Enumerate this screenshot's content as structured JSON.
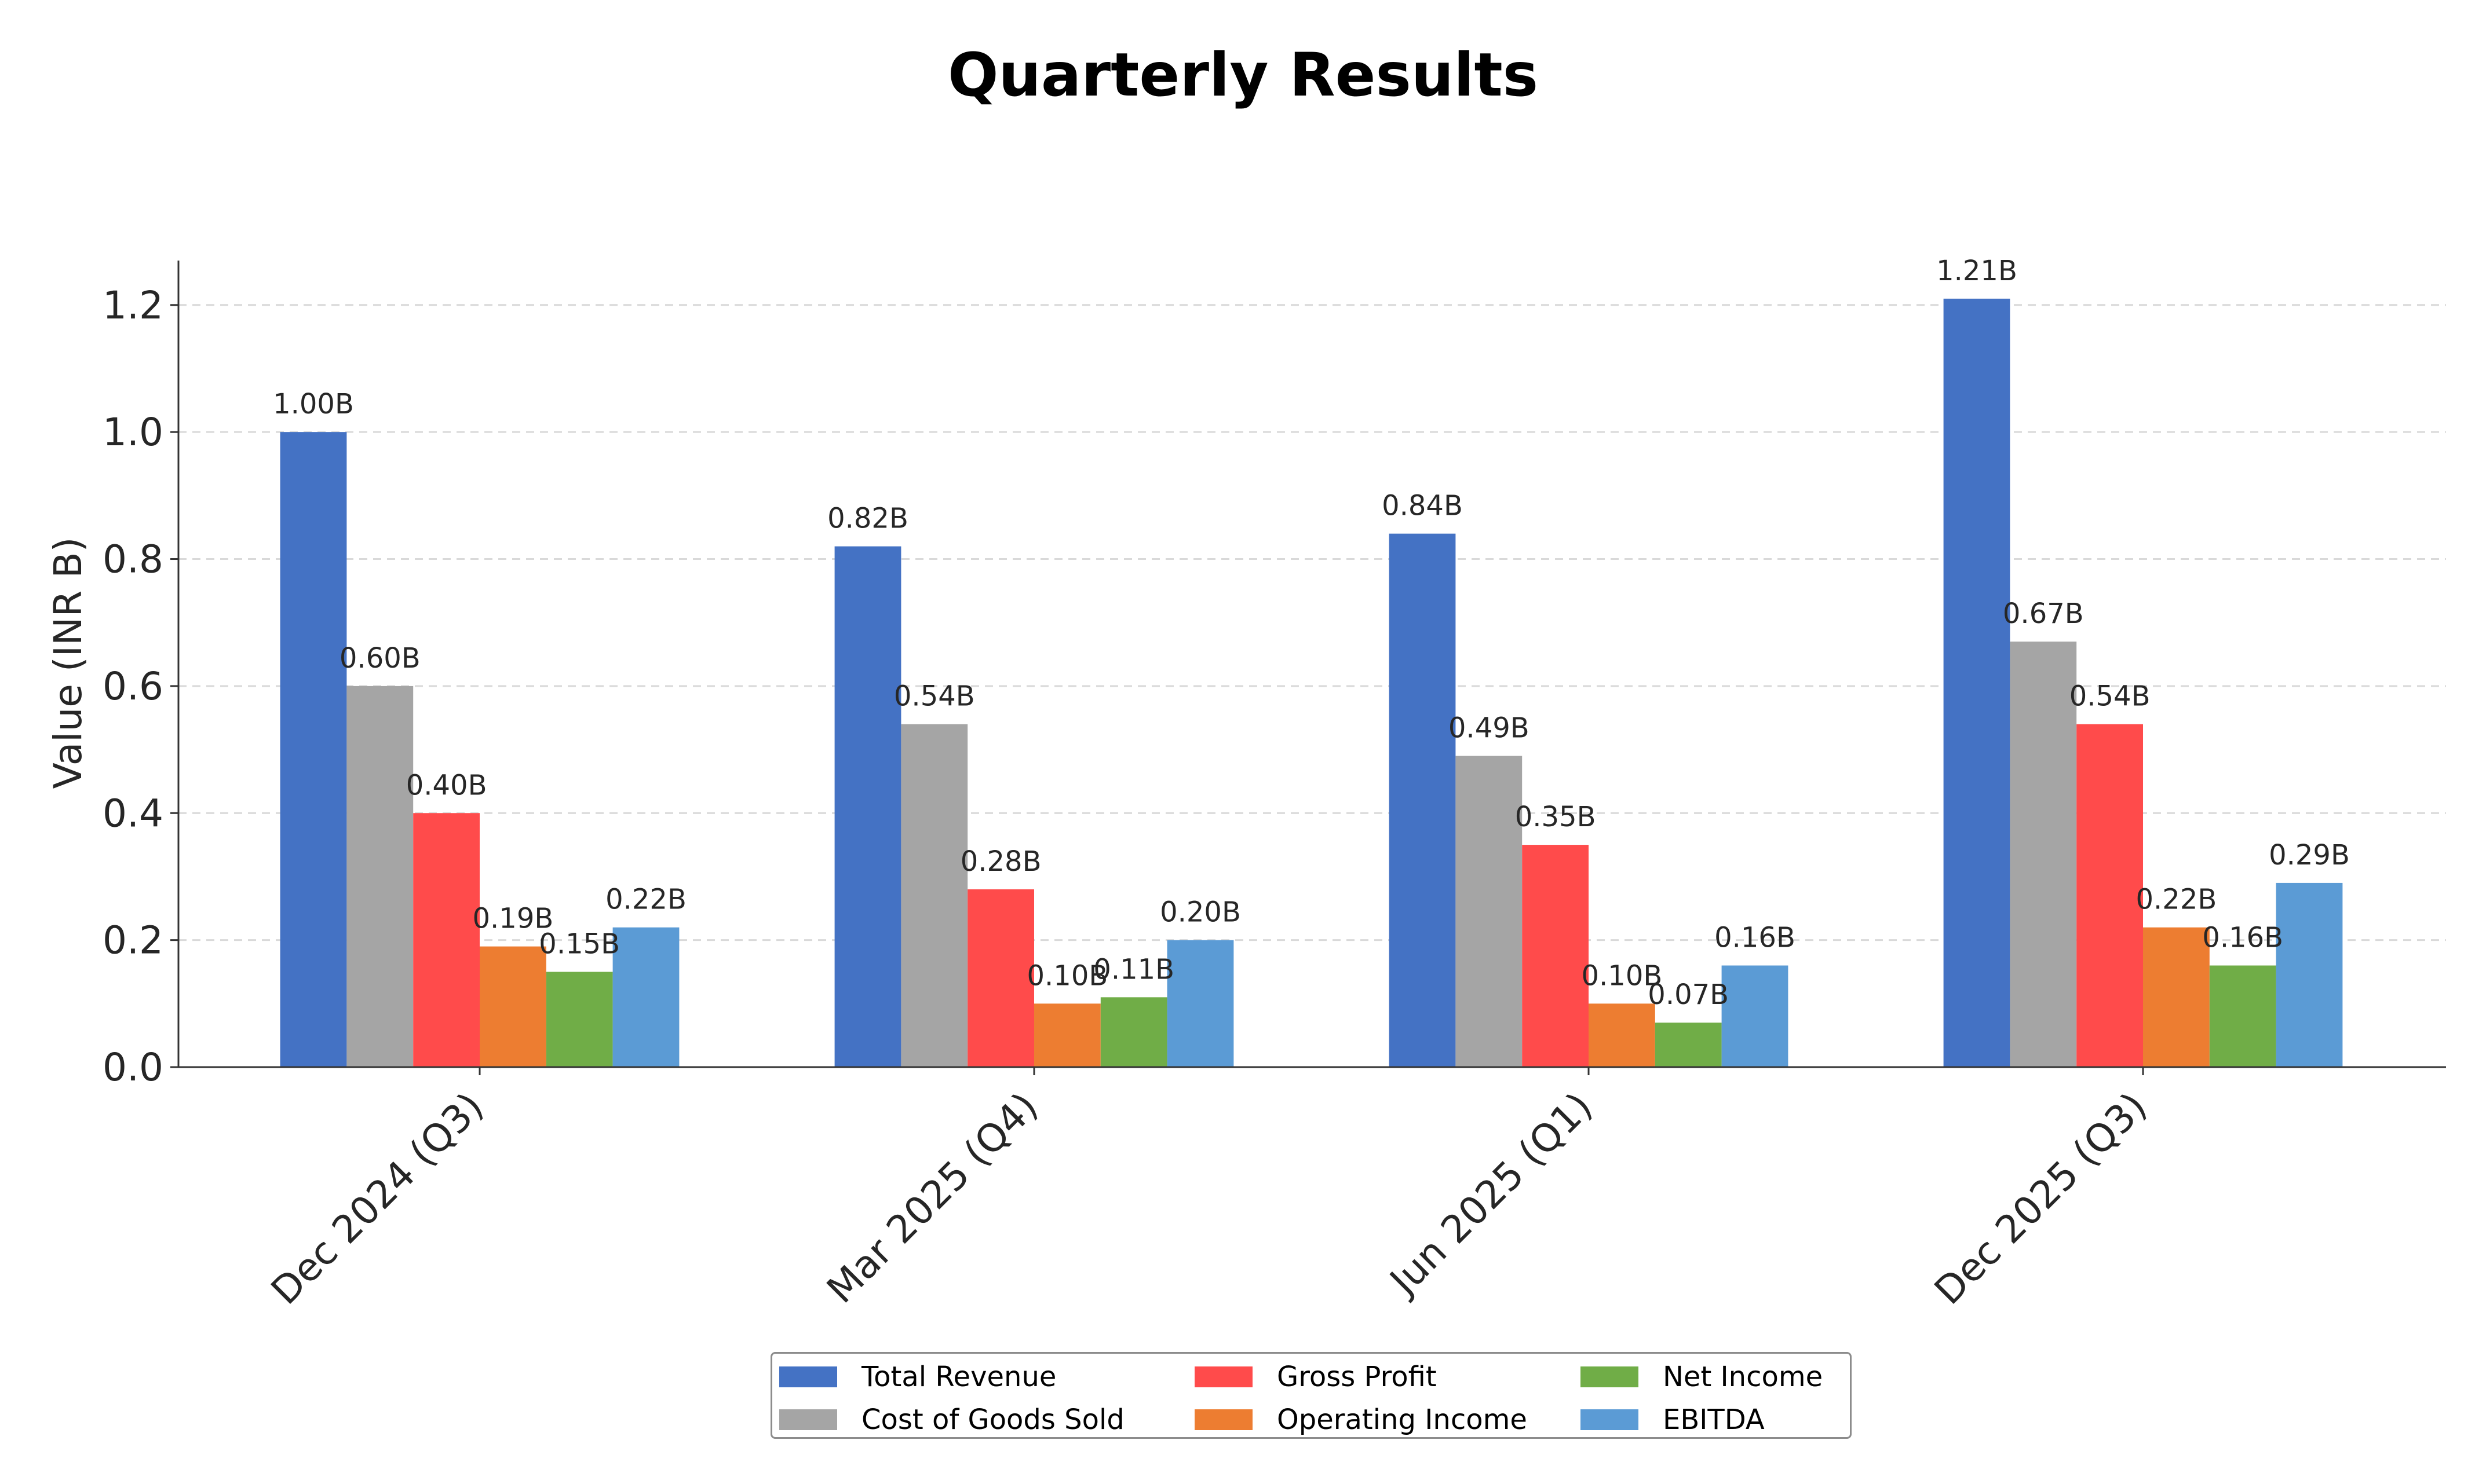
{
  "chart_data": {
    "type": "bar",
    "title": "Quarterly Results",
    "xlabel": "",
    "ylabel": "Value (INR B)",
    "ylim": [
      0,
      1.27
    ],
    "yticks": [
      "0.0",
      "0.2",
      "0.4",
      "0.6",
      "0.8",
      "1.0",
      "1.2"
    ],
    "grid": "horizontal dashed",
    "legend_position": "bottom-center",
    "categories": [
      "Dec 2024 (Q3)",
      "Mar 2025 (Q4)",
      "Jun 2025 (Q1)",
      "Dec 2025 (Q3)"
    ],
    "series": [
      {
        "name": "Total Revenue",
        "color": "#4472c4",
        "values": [
          1.0,
          0.82,
          0.84,
          1.21
        ],
        "labels": [
          "1.00B",
          "0.82B",
          "0.84B",
          "1.21B"
        ]
      },
      {
        "name": "Cost of Goods Sold",
        "color": "#a5a5a5",
        "values": [
          0.6,
          0.54,
          0.49,
          0.67
        ],
        "labels": [
          "0.60B",
          "0.54B",
          "0.49B",
          "0.67B"
        ]
      },
      {
        "name": "Gross Profit",
        "color": "#ff4b4b",
        "values": [
          0.4,
          0.28,
          0.35,
          0.54
        ],
        "labels": [
          "0.40B",
          "0.28B",
          "0.35B",
          "0.54B"
        ]
      },
      {
        "name": "Operating Income",
        "color": "#ed7d31",
        "values": [
          0.19,
          0.1,
          0.1,
          0.22
        ],
        "labels": [
          "0.19B",
          "0.10B",
          "0.10B",
          "0.22B"
        ]
      },
      {
        "name": "Net Income",
        "color": "#70ad47",
        "values": [
          0.15,
          0.11,
          0.07,
          0.16
        ],
        "labels": [
          "0.15B",
          "0.11B",
          "0.07B",
          "0.16B"
        ]
      },
      {
        "name": "EBITDA",
        "color": "#5b9bd5",
        "values": [
          0.22,
          0.2,
          0.16,
          0.29
        ],
        "labels": [
          "0.22B",
          "0.20B",
          "0.16B",
          "0.29B"
        ]
      }
    ]
  }
}
